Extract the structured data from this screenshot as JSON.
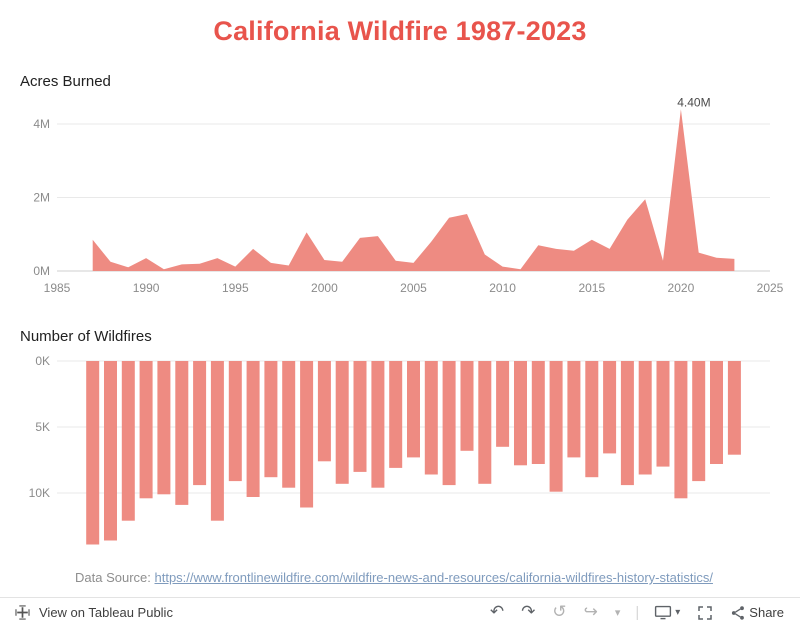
{
  "title": "California Wildfire 1987-2023",
  "colors": {
    "accent": "#e8544c",
    "series": "#ee8b82",
    "grid": "#e9e9e9",
    "axis_line": "#cfcfcf",
    "axis_text": "#8b8b8b",
    "link": "#7f9bbd",
    "toolbar_icon": "#5f6368"
  },
  "chart_data": [
    {
      "type": "area",
      "title": "Acres Burned",
      "color": "#ee8b82",
      "x": [
        1987,
        1988,
        1989,
        1990,
        1991,
        1992,
        1993,
        1994,
        1995,
        1996,
        1997,
        1998,
        1999,
        2000,
        2001,
        2002,
        2003,
        2004,
        2005,
        2006,
        2007,
        2008,
        2009,
        2010,
        2011,
        2012,
        2013,
        2014,
        2015,
        2016,
        2017,
        2018,
        2019,
        2020,
        2021,
        2022,
        2023
      ],
      "values": [
        0.85,
        0.25,
        0.1,
        0.35,
        0.05,
        0.18,
        0.2,
        0.35,
        0.12,
        0.6,
        0.22,
        0.15,
        1.05,
        0.3,
        0.25,
        0.9,
        0.95,
        0.28,
        0.22,
        0.8,
        1.45,
        1.55,
        0.45,
        0.12,
        0.05,
        0.7,
        0.6,
        0.55,
        0.85,
        0.6,
        1.4,
        1.95,
        0.28,
        4.4,
        0.5,
        0.36,
        0.33
      ],
      "unit": "millions of acres",
      "yticks": [
        {
          "label": "0M",
          "value": 0
        },
        {
          "label": "2M",
          "value": 2
        },
        {
          "label": "4M",
          "value": 4
        }
      ],
      "xticks": [
        1985,
        1990,
        1995,
        2000,
        2005,
        2010,
        2015,
        2020,
        2025
      ],
      "xlim": [
        1985,
        2025
      ],
      "ylim": [
        0,
        4.6
      ],
      "grid": true,
      "annotation": {
        "text": "4.40M",
        "year": 2020,
        "value": 4.4
      }
    },
    {
      "type": "bar",
      "title": "Number of Wildfires",
      "color": "#ee8b82",
      "orientation": "inverted-from-top",
      "x": [
        1987,
        1988,
        1989,
        1990,
        1991,
        1992,
        1993,
        1994,
        1995,
        1996,
        1997,
        1998,
        1999,
        2000,
        2001,
        2002,
        2003,
        2004,
        2005,
        2006,
        2007,
        2008,
        2009,
        2010,
        2011,
        2012,
        2013,
        2014,
        2015,
        2016,
        2017,
        2018,
        2019,
        2020,
        2021,
        2022,
        2023
      ],
      "values": [
        13.9,
        13.6,
        12.1,
        10.4,
        10.1,
        10.9,
        9.4,
        12.1,
        9.1,
        10.3,
        8.8,
        9.6,
        11.1,
        7.6,
        9.3,
        8.4,
        9.6,
        8.1,
        7.3,
        8.6,
        9.4,
        6.8,
        9.3,
        6.5,
        7.9,
        7.8,
        9.9,
        7.3,
        8.8,
        7.0,
        9.4,
        8.6,
        8.0,
        10.4,
        9.1,
        7.8,
        7.1
      ],
      "unit": "thousands of fires",
      "yticks": [
        {
          "label": "0K",
          "value": 0
        },
        {
          "label": "5K",
          "value": 5
        },
        {
          "label": "10K",
          "value": 10
        }
      ],
      "ylim": [
        0,
        14.5
      ],
      "grid": true
    }
  ],
  "caption": {
    "prefix": "Data Source: ",
    "link_text": "https://www.frontlinewildfire.com/wildfire-news-and-resources/california-wildfires-history-statistics/"
  },
  "toolbar": {
    "brand_label": "View on Tableau Public",
    "share_label": "Share",
    "glyphs": {
      "undo": "↶",
      "redo": "↷",
      "replay": "↺",
      "forward": "↪",
      "caret": "▾",
      "separator": "|"
    }
  }
}
